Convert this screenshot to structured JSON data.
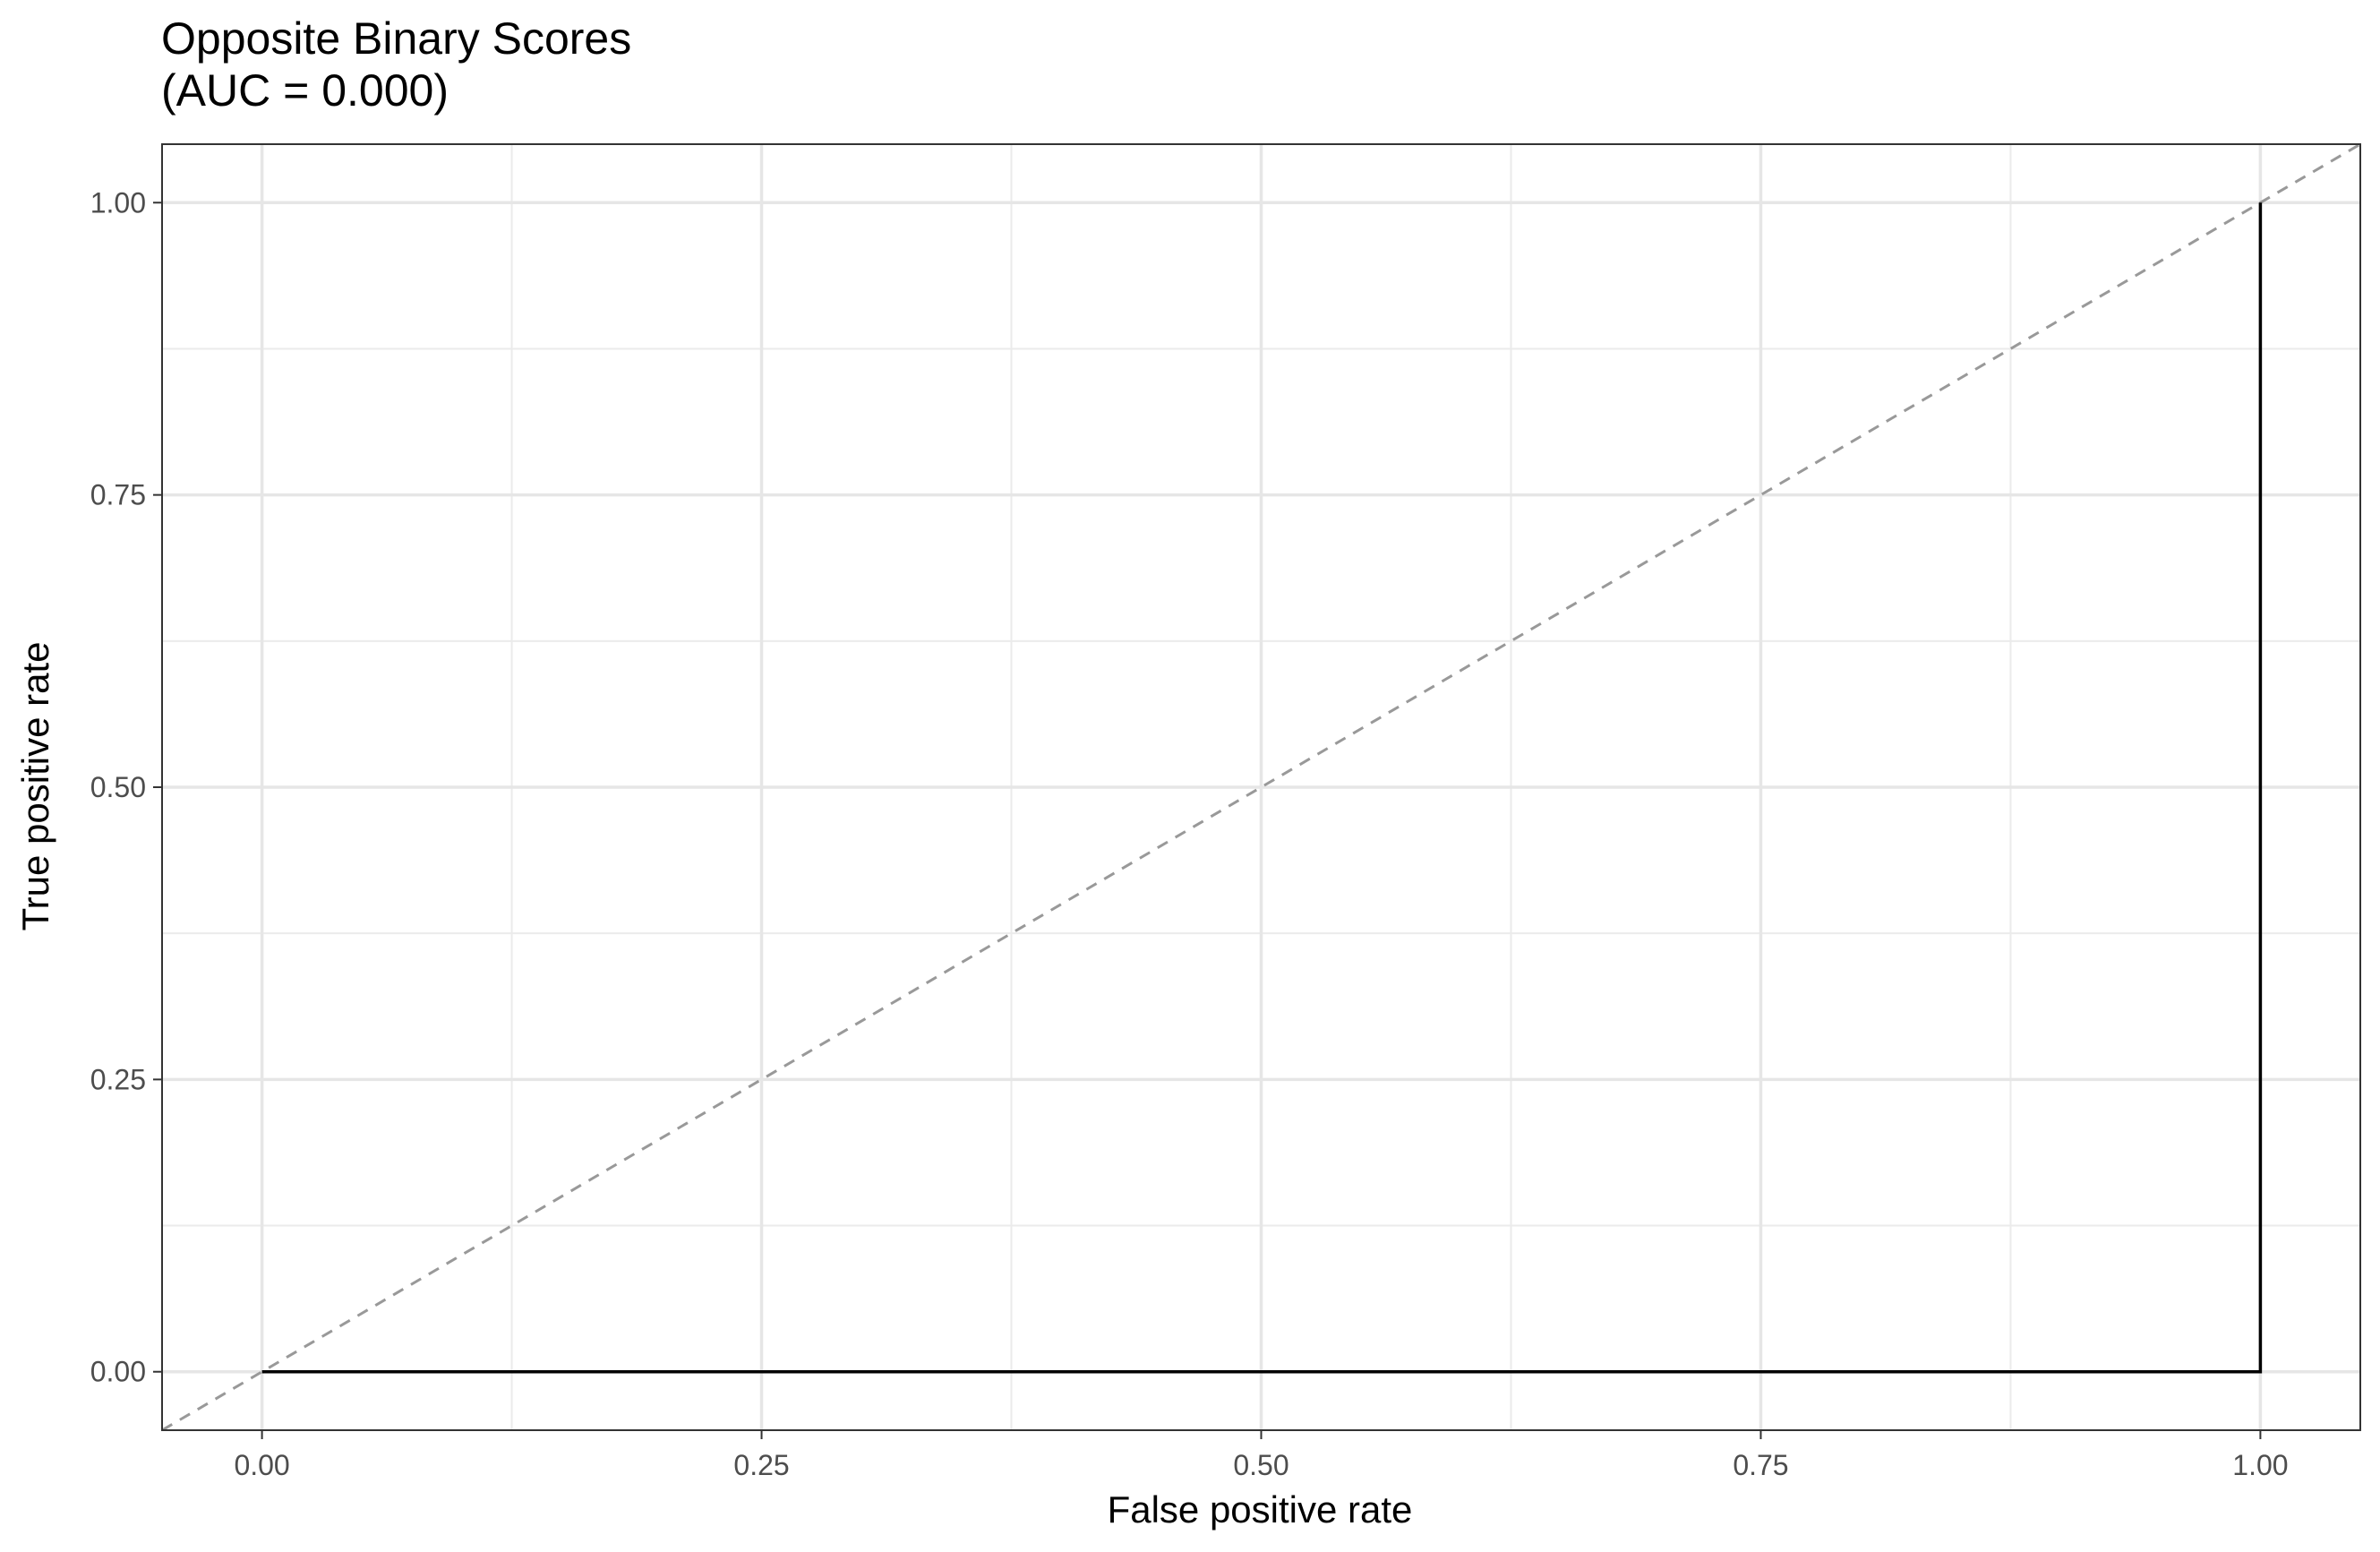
{
  "chart_data": {
    "type": "line",
    "title_line1": "Opposite Binary Scores",
    "title_line2": "(AUC = 0.000)",
    "xlabel": "False positive rate",
    "ylabel": "True positive rate",
    "xlim": [
      -0.05,
      1.05
    ],
    "ylim": [
      -0.05,
      1.05
    ],
    "x_ticks": [
      0,
      0.25,
      0.5,
      0.75,
      1
    ],
    "x_tick_labels": [
      "0.00",
      "0.25",
      "0.50",
      "0.75",
      "1.00"
    ],
    "y_ticks": [
      0,
      0.25,
      0.5,
      0.75,
      1
    ],
    "y_tick_labels": [
      "0.00",
      "0.25",
      "0.50",
      "0.75",
      "1.00"
    ],
    "grid": true,
    "series": [
      {
        "x": [
          0,
          1,
          1
        ],
        "y": [
          0,
          0,
          1
        ],
        "color": "#000000",
        "style": "solid"
      },
      {
        "x": [
          -0.05,
          1.05
        ],
        "y": [
          -0.05,
          1.05
        ],
        "color": "#999999",
        "style": "dashed"
      }
    ]
  }
}
